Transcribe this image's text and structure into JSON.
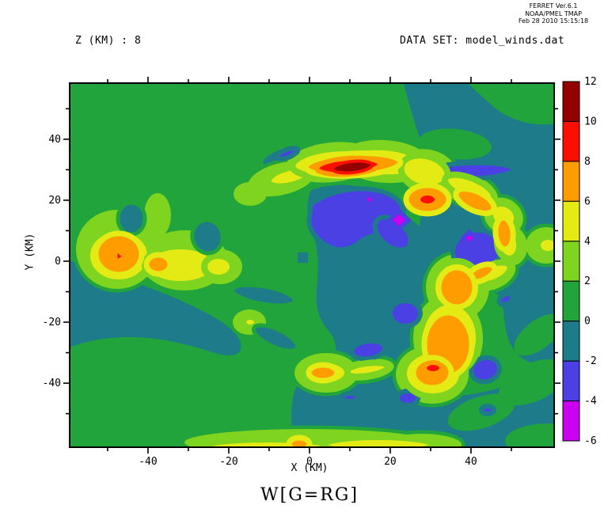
{
  "palette": {
    "green": "#21A43C",
    "teal": "#1E7B8A",
    "blue": "#4A40E4",
    "magenta": "#CC00F0",
    "yg": "#7FD41F",
    "yellow": "#E4EB14",
    "orange": "#FF9C00",
    "red": "#FA0F00",
    "darkred": "#930000",
    "frame": "#000000",
    "bg": "#FFFFFF"
  },
  "header": {
    "line1": "FERRET  Ver.6.1",
    "line2": "NOAA/PMEL TMAP",
    "line3": "Feb 28 2010 15:15:18"
  },
  "labels": {
    "z_slice": "Z (KM) : 8",
    "dataset": "DATA SET: model_winds.dat",
    "xlabel": "X (KM)",
    "ylabel": "Y (KM)",
    "title": "W[G=RG]"
  },
  "chart_data": {
    "type": "heatmap",
    "title": "W[G=RG]",
    "subtitle_left": "Z (KM) : 8",
    "subtitle_right": "DATA SET: model_winds.dat",
    "xlabel": "X (KM)",
    "ylabel": "Y (KM)",
    "xlim": [
      -59.4,
      60.6
    ],
    "ylim": [
      -61,
      58.4
    ],
    "x_ticks": [
      -40,
      -20,
      0,
      20,
      40
    ],
    "x_minor_ticks": [
      -50,
      -30,
      -10,
      10,
      30,
      50
    ],
    "y_ticks": [
      40,
      20,
      0,
      -20,
      -40
    ],
    "y_minor_ticks": [
      50,
      30,
      10,
      -10,
      -30,
      -50
    ],
    "grid": false,
    "contour_interval": 2,
    "legend_position": "right-colorbar",
    "colorbar": {
      "levels": [
        -6,
        -4,
        -2,
        0,
        2,
        4,
        6,
        8,
        10,
        12
      ],
      "labels_top_to_bottom": [
        "12",
        "10",
        "8",
        "6",
        "4",
        "2",
        "0",
        "-2",
        "-4",
        "-6"
      ],
      "colors_top_to_bottom": [
        "#930000",
        "#FA0F00",
        "#FF9C00",
        "#E4EB14",
        "#7FD41F",
        "#21A43C",
        "#1E7B8A",
        "#4A40E4",
        "#CC00F0"
      ],
      "band_meaning_top_to_bottom": [
        "10 to 12",
        "8 to 10",
        "6 to 8",
        "4 to 6",
        "2 to 4",
        "0 to 2",
        "-2 to 0",
        "-4 to -2",
        "-6 to -4"
      ]
    },
    "features": [
      {
        "desc": "elongated absolute maximum (dark red, 10-12) in upper arc",
        "x_km": 12,
        "y_km": 30
      },
      {
        "desc": "secondary red maximum (8-10) at arc/hook junction",
        "x_km": 29,
        "y_km": 20
      },
      {
        "desc": "red spot (8-10) inside lower-right orange cell",
        "x_km": 31,
        "y_km": -35
      },
      {
        "desc": "small red core (8-10) in western orange cell",
        "x_km": -47,
        "y_km": 2
      },
      {
        "desc": "magenta minimum (< -4) below upper arc",
        "x_km": 15,
        "y_km": 20
      },
      {
        "desc": "magenta minimum (< -4) in blue pocket",
        "x_km": 22,
        "y_km": -13
      },
      {
        "desc": "magenta minimum (< -4) in eastern blue blob",
        "x_km": 40,
        "y_km": 7
      },
      {
        "desc": "broad green background (0-2) with teal (-2-0) ring interior",
        "x_km": 0,
        "y_km": 0
      }
    ]
  }
}
